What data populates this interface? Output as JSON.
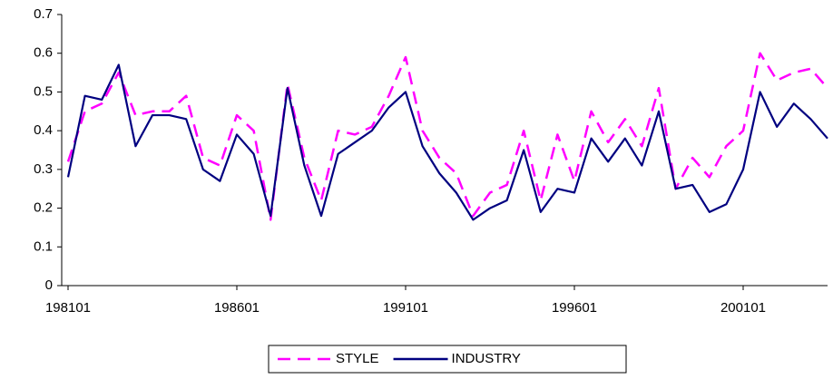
{
  "chart_data": {
    "type": "line",
    "categories": [
      "198101",
      null,
      null,
      null,
      null,
      null,
      null,
      null,
      null,
      null,
      "198601",
      null,
      null,
      null,
      null,
      null,
      null,
      null,
      null,
      null,
      "199101",
      null,
      null,
      null,
      null,
      null,
      null,
      null,
      null,
      null,
      "199601",
      null,
      null,
      null,
      null,
      null,
      null,
      null,
      null,
      null,
      "200101",
      null,
      null,
      null,
      null,
      null
    ],
    "series": [
      {
        "name": "STYLE",
        "color": "#ff00ff",
        "dash": true,
        "values": [
          0.32,
          0.45,
          0.47,
          0.55,
          0.44,
          0.45,
          0.45,
          0.49,
          0.33,
          0.31,
          0.44,
          0.4,
          0.17,
          0.52,
          0.33,
          0.22,
          0.4,
          0.39,
          0.41,
          0.49,
          0.59,
          0.4,
          0.33,
          0.29,
          0.18,
          0.24,
          0.26,
          0.4,
          0.22,
          0.39,
          0.27,
          0.45,
          0.37,
          0.43,
          0.36,
          0.51,
          0.25,
          0.33,
          0.28,
          0.36,
          0.4,
          0.6,
          0.53,
          0.55,
          0.56,
          0.51
        ]
      },
      {
        "name": "INDUSTRY",
        "color": "#000080",
        "dash": false,
        "values": [
          0.28,
          0.49,
          0.48,
          0.57,
          0.36,
          0.44,
          0.44,
          0.43,
          0.3,
          0.27,
          0.39,
          0.34,
          0.18,
          0.51,
          0.31,
          0.18,
          0.34,
          0.37,
          0.4,
          0.46,
          0.5,
          0.36,
          0.29,
          0.24,
          0.17,
          0.2,
          0.22,
          0.35,
          0.19,
          0.25,
          0.24,
          0.38,
          0.32,
          0.38,
          0.31,
          0.45,
          0.25,
          0.26,
          0.19,
          0.21,
          0.3,
          0.5,
          0.41,
          0.47,
          0.43,
          0.38
        ]
      }
    ],
    "ylim": [
      0,
      0.7
    ],
    "yticks": [
      0,
      0.1,
      0.2,
      0.3,
      0.4,
      0.5,
      0.6,
      0.7
    ],
    "grid": false,
    "legend": "bottom"
  }
}
